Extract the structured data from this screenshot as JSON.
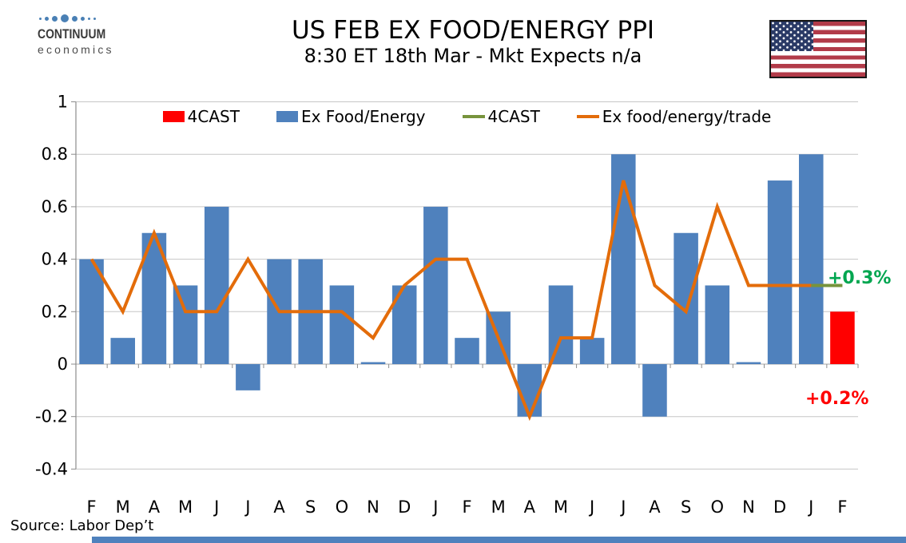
{
  "header": {
    "logo_line1": "CONTINUUM",
    "logo_line2": "economics",
    "title": "US FEB EX FOOD/ENERGY PPI",
    "subtitle": "8:30 ET 18th Mar - Mkt Expects n/a",
    "flag_icon": "us-flag"
  },
  "chart_data": {
    "type": "combo-bar-line",
    "categories": [
      "F",
      "M",
      "A",
      "M",
      "J",
      "J",
      "A",
      "S",
      "O",
      "N",
      "D",
      "J",
      "F",
      "M",
      "A",
      "M",
      "J",
      "J",
      "A",
      "S",
      "O",
      "N",
      "D",
      "J",
      "F"
    ],
    "series": [
      {
        "name": "4CAST",
        "type": "bar",
        "color": "#FF0000",
        "values": [
          null,
          null,
          null,
          null,
          null,
          null,
          null,
          null,
          null,
          null,
          null,
          null,
          null,
          null,
          null,
          null,
          null,
          null,
          null,
          null,
          null,
          null,
          null,
          null,
          0.2
        ]
      },
      {
        "name": "Ex Food/Energy",
        "type": "bar",
        "color": "#4F81BD",
        "values": [
          0.4,
          0.1,
          0.5,
          0.3,
          0.6,
          -0.1,
          0.4,
          0.4,
          0.3,
          0.0,
          0.3,
          0.6,
          0.1,
          0.2,
          -0.2,
          0.3,
          0.1,
          0.8,
          -0.2,
          0.5,
          0.3,
          0.0,
          0.7,
          0.8,
          null
        ]
      },
      {
        "name": "4CAST",
        "type": "line",
        "color": "#77933C",
        "values": [
          null,
          null,
          null,
          null,
          null,
          null,
          null,
          null,
          null,
          null,
          null,
          null,
          null,
          null,
          null,
          null,
          null,
          null,
          null,
          null,
          null,
          null,
          null,
          0.3,
          0.3
        ]
      },
      {
        "name": "Ex food/energy/trade",
        "type": "line",
        "color": "#E36C0A",
        "values": [
          0.4,
          0.2,
          0.5,
          0.2,
          0.2,
          0.4,
          0.2,
          0.2,
          0.2,
          0.1,
          0.3,
          0.4,
          0.4,
          0.1,
          -0.2,
          0.1,
          0.1,
          0.7,
          0.3,
          0.2,
          0.6,
          0.3,
          0.3,
          0.3,
          null
        ]
      }
    ],
    "ylim": [
      -0.4,
      1.0
    ],
    "y_ticks": [
      "1",
      "0.8",
      "0.6",
      "0.4",
      "0.2",
      "0",
      "-0.2",
      "-0.4"
    ],
    "grid": "horizontal",
    "legend_position": "top"
  },
  "annotations": {
    "line_end_label": "+0.3%",
    "line_end_color": "#00A650",
    "forecast_label": "+0.2%",
    "forecast_color": "#FF0000"
  },
  "source": "Source: Labor Dep’t",
  "footer": {
    "accent_color": "#4F81BD"
  }
}
